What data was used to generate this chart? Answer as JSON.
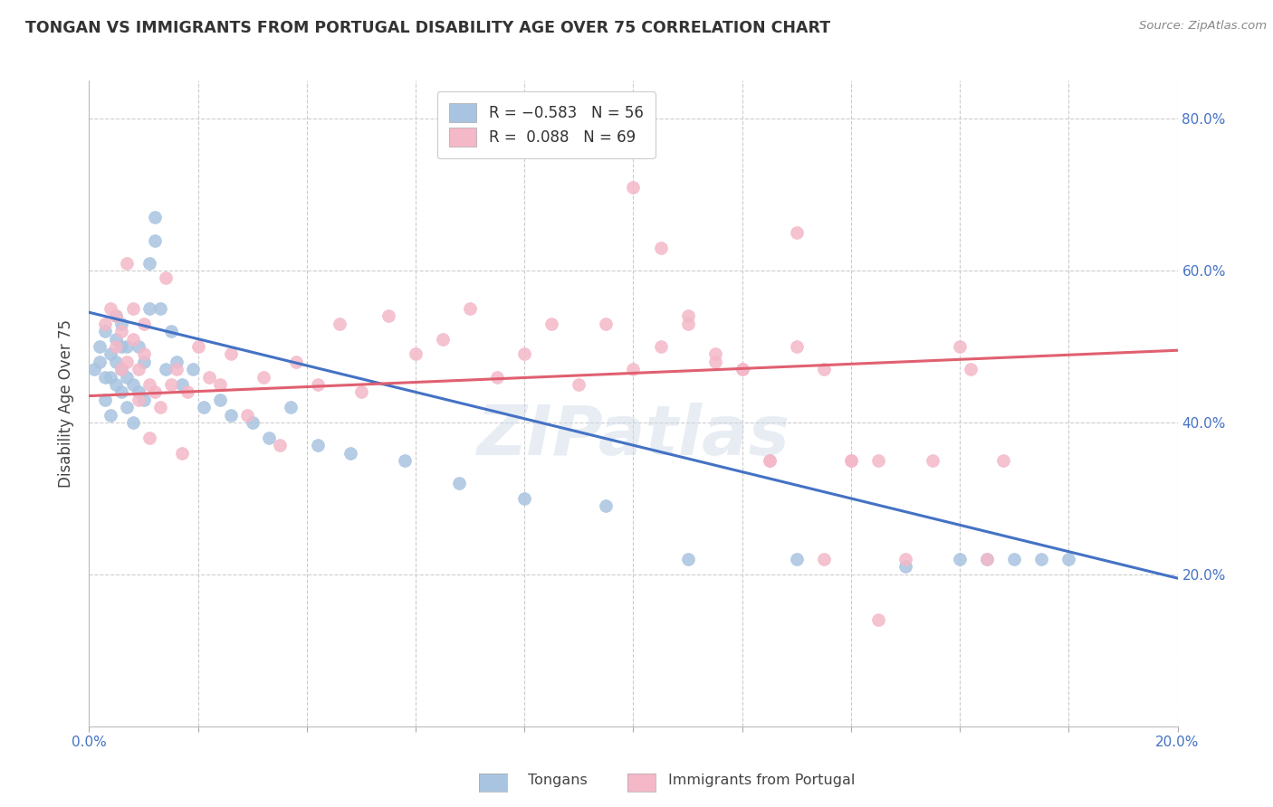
{
  "title": "TONGAN VS IMMIGRANTS FROM PORTUGAL DISABILITY AGE OVER 75 CORRELATION CHART",
  "source": "Source: ZipAtlas.com",
  "ylabel": "Disability Age Over 75",
  "xmin": 0.0,
  "xmax": 0.2,
  "ymin": 0.0,
  "ymax": 0.85,
  "yticks": [
    0.2,
    0.4,
    0.6,
    0.8
  ],
  "ytick_labels": [
    "20.0%",
    "40.0%",
    "60.0%",
    "80.0%"
  ],
  "xticks": [
    0.0,
    0.02,
    0.04,
    0.06,
    0.08,
    0.1,
    0.12,
    0.14,
    0.16,
    0.18,
    0.2
  ],
  "xtick_labels": [
    "0.0%",
    "",
    "",
    "",
    "",
    "",
    "",
    "",
    "",
    "",
    "20.0%"
  ],
  "tongan_color": "#a8c4e0",
  "portugal_color": "#f4b8c8",
  "tongan_line_color": "#4472c4",
  "portugal_line_color": "#e06070",
  "watermark": "ZIPatlas",
  "tongan_line_x0": 0.0,
  "tongan_line_y0": 0.545,
  "tongan_line_x1": 0.2,
  "tongan_line_y1": 0.195,
  "portugal_line_x0": 0.0,
  "portugal_line_y0": 0.435,
  "portugal_line_x1": 0.2,
  "portugal_line_y1": 0.495,
  "tongan_x": [
    0.001,
    0.002,
    0.002,
    0.003,
    0.003,
    0.003,
    0.004,
    0.004,
    0.004,
    0.005,
    0.005,
    0.005,
    0.005,
    0.006,
    0.006,
    0.006,
    0.006,
    0.007,
    0.007,
    0.007,
    0.008,
    0.008,
    0.009,
    0.009,
    0.01,
    0.01,
    0.011,
    0.011,
    0.012,
    0.012,
    0.013,
    0.014,
    0.015,
    0.016,
    0.017,
    0.019,
    0.021,
    0.024,
    0.026,
    0.03,
    0.033,
    0.037,
    0.042,
    0.048,
    0.058,
    0.068,
    0.08,
    0.095,
    0.11,
    0.13,
    0.15,
    0.16,
    0.165,
    0.17,
    0.175,
    0.18
  ],
  "tongan_y": [
    0.47,
    0.48,
    0.5,
    0.43,
    0.46,
    0.52,
    0.41,
    0.46,
    0.49,
    0.45,
    0.48,
    0.51,
    0.54,
    0.44,
    0.47,
    0.5,
    0.53,
    0.42,
    0.46,
    0.5,
    0.4,
    0.45,
    0.44,
    0.5,
    0.43,
    0.48,
    0.55,
    0.61,
    0.64,
    0.67,
    0.55,
    0.47,
    0.52,
    0.48,
    0.45,
    0.47,
    0.42,
    0.43,
    0.41,
    0.4,
    0.38,
    0.42,
    0.37,
    0.36,
    0.35,
    0.32,
    0.3,
    0.29,
    0.22,
    0.22,
    0.21,
    0.22,
    0.22,
    0.22,
    0.22,
    0.22
  ],
  "portugal_x": [
    0.003,
    0.004,
    0.005,
    0.005,
    0.006,
    0.006,
    0.007,
    0.007,
    0.008,
    0.008,
    0.009,
    0.009,
    0.01,
    0.01,
    0.011,
    0.011,
    0.012,
    0.013,
    0.014,
    0.015,
    0.016,
    0.017,
    0.018,
    0.02,
    0.022,
    0.024,
    0.026,
    0.029,
    0.032,
    0.035,
    0.038,
    0.042,
    0.046,
    0.05,
    0.055,
    0.06,
    0.065,
    0.07,
    0.075,
    0.08,
    0.085,
    0.09,
    0.095,
    0.1,
    0.105,
    0.11,
    0.115,
    0.12,
    0.125,
    0.13,
    0.135,
    0.14,
    0.145,
    0.15,
    0.155,
    0.16,
    0.162,
    0.165,
    0.168,
    0.1,
    0.105,
    0.11,
    0.115,
    0.12,
    0.125,
    0.13,
    0.135,
    0.14,
    0.145
  ],
  "portugal_y": [
    0.53,
    0.55,
    0.5,
    0.54,
    0.47,
    0.52,
    0.48,
    0.61,
    0.51,
    0.55,
    0.43,
    0.47,
    0.49,
    0.53,
    0.38,
    0.45,
    0.44,
    0.42,
    0.59,
    0.45,
    0.47,
    0.36,
    0.44,
    0.5,
    0.46,
    0.45,
    0.49,
    0.41,
    0.46,
    0.37,
    0.48,
    0.45,
    0.53,
    0.44,
    0.54,
    0.49,
    0.51,
    0.55,
    0.46,
    0.49,
    0.53,
    0.45,
    0.53,
    0.47,
    0.5,
    0.53,
    0.48,
    0.47,
    0.35,
    0.5,
    0.47,
    0.35,
    0.35,
    0.22,
    0.35,
    0.5,
    0.47,
    0.22,
    0.35,
    0.71,
    0.63,
    0.54,
    0.49,
    0.47,
    0.35,
    0.65,
    0.22,
    0.35,
    0.14
  ]
}
